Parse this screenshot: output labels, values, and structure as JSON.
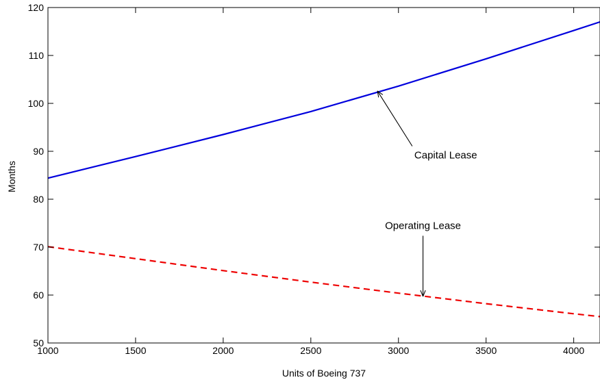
{
  "chart_data": {
    "type": "line",
    "title": "",
    "xlabel": "Units of Boeing 737",
    "ylabel": "Months",
    "xlim": [
      1000,
      4150
    ],
    "ylim": [
      50,
      120
    ],
    "xticks": [
      1000,
      1500,
      2000,
      2500,
      3000,
      3500,
      4000
    ],
    "yticks": [
      50,
      60,
      70,
      80,
      90,
      100,
      110,
      120
    ],
    "grid": false,
    "series": [
      {
        "name": "Capital Lease",
        "color": "#0000dd",
        "style": "solid",
        "x": [
          1000,
          1500,
          2000,
          2500,
          3000,
          3500,
          4000,
          4150
        ],
        "y": [
          84.4,
          88.9,
          93.5,
          98.3,
          103.6,
          109.3,
          115.2,
          117.0
        ]
      },
      {
        "name": "Operating Lease",
        "color": "#ee0000",
        "style": "dashed",
        "x": [
          1000,
          1500,
          2000,
          2500,
          3000,
          3500,
          4000,
          4150
        ],
        "y": [
          70.1,
          67.6,
          65.1,
          62.7,
          60.4,
          58.2,
          56.1,
          55.5
        ]
      }
    ],
    "annotations": [
      {
        "text": "Capital Lease",
        "point": [
          2880,
          102.6
        ],
        "text_at": [
          3110,
          88.5
        ]
      },
      {
        "text": "Operating Lease",
        "point": [
          3140,
          59.7
        ],
        "text_at": [
          3140,
          73.8
        ]
      }
    ]
  }
}
